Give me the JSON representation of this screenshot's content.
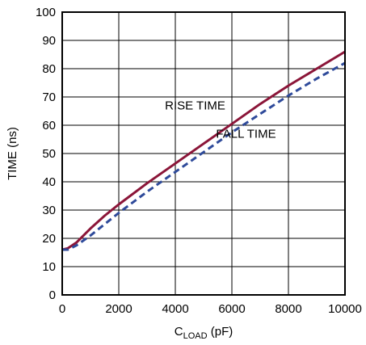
{
  "chart_data": {
    "type": "line",
    "xlabel": {
      "main": "C",
      "sub": "LOAD",
      "rest": " (pF)"
    },
    "ylabel": "TIME (ns)",
    "xlim": [
      0,
      10000
    ],
    "ylim": [
      0,
      100
    ],
    "x_ticks": [
      0,
      2000,
      4000,
      6000,
      8000,
      10000
    ],
    "y_ticks": [
      0,
      10,
      20,
      30,
      40,
      50,
      60,
      70,
      80,
      90,
      100
    ],
    "grid": true,
    "series": [
      {
        "name": "RISE TIME",
        "color": "#8b1538",
        "style": "solid",
        "x": [
          0,
          200,
          500,
          1000,
          1500,
          2000,
          3000,
          4000,
          5000,
          6000,
          7000,
          8000,
          9000,
          10000
        ],
        "y": [
          16,
          16.5,
          18.5,
          23.5,
          28,
          32,
          39.5,
          46.5,
          53.5,
          60.5,
          67.5,
          74,
          80,
          86
        ]
      },
      {
        "name": "FALL TIME",
        "color": "#2e4a9a",
        "style": "dashed",
        "x": [
          0,
          200,
          500,
          1000,
          1500,
          2000,
          3000,
          4000,
          5000,
          6000,
          7000,
          8000,
          9000,
          10000
        ],
        "y": [
          16,
          16,
          17.5,
          21,
          25,
          29,
          36.5,
          43.5,
          50.5,
          57.5,
          64,
          70.5,
          76.5,
          82
        ]
      }
    ],
    "annotations": [
      {
        "text": "RISE TIME",
        "x": 4700,
        "y": 65.6
      },
      {
        "text": "FALL TIME",
        "x": 6500,
        "y": 55.6
      }
    ]
  }
}
